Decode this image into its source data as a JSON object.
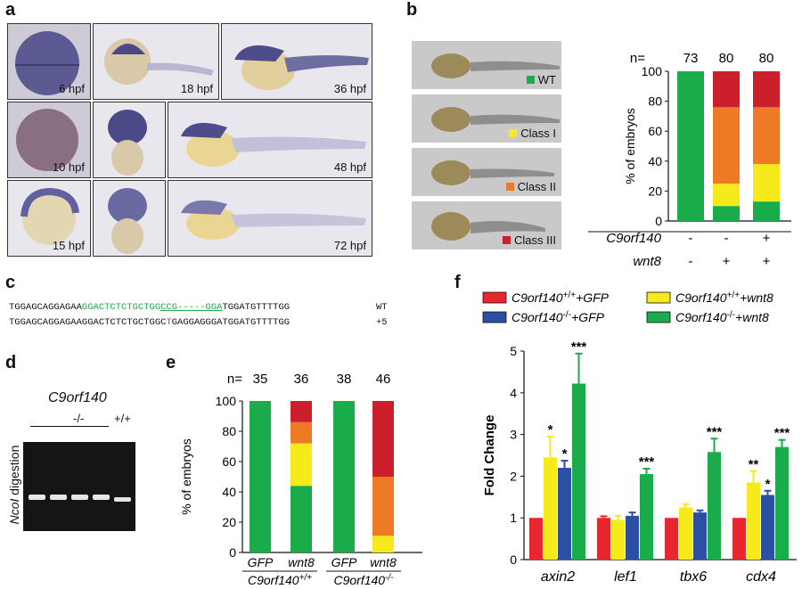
{
  "panels": {
    "a": "a",
    "b": "b",
    "c": "c",
    "d": "d",
    "e": "e",
    "f": "f"
  },
  "panel_a": {
    "stages": [
      "6 hpf",
      "18 hpf",
      "36 hpf",
      "10 hpf",
      "48 hpf",
      "15 hpf",
      "72 hpf"
    ]
  },
  "panel_b": {
    "class_labels": [
      "WT",
      "Class I",
      "Class II",
      "Class III"
    ],
    "class_colors": [
      "#1aab4b",
      "#f6ea1d",
      "#ee7a25",
      "#cc1f2c"
    ]
  },
  "panel_c": {
    "wt_seq_prefix": "TGGAGCAGGAGAA",
    "wt_seq_green1": "GGACTCTCTGCTGG",
    "wt_seq_green2": "CCG-----GGA",
    "wt_seq_suffix": "TGGATGTTTTGG",
    "wt_label": "WT",
    "mut_seq_prefix": "TGGAGCAGGAGAAGGACTCTCTGCTGGC",
    "mut_seq_red": "T",
    "mut_seq_suffix": "GAGGAGGGATGGATGTTTTGG",
    "mut_label": "+5"
  },
  "panel_d": {
    "gene": "C9orf140",
    "genotype_mut": "-/-",
    "genotype_wt": "+/+",
    "ylabel_italic": "NcoI",
    "ylabel_rest": " digestion"
  },
  "chart_data": [
    {
      "id": "b",
      "type": "bar",
      "stacked": true,
      "n_label": "n=",
      "n": [
        "73",
        "80",
        "80"
      ],
      "ylabel": "% of embryos",
      "ylim": [
        0,
        100
      ],
      "yticks": [
        "0",
        "20",
        "40",
        "60",
        "80",
        "100"
      ],
      "row_labels": [
        "C9orf140",
        "wnt8"
      ],
      "rows": [
        [
          "-",
          "-",
          "+"
        ],
        [
          "-",
          "+",
          "+"
        ]
      ],
      "series": [
        {
          "name": "WT",
          "values": [
            100,
            10,
            13
          ]
        },
        {
          "name": "Class I",
          "values": [
            0,
            15,
            25
          ]
        },
        {
          "name": "Class II",
          "values": [
            0,
            51,
            38
          ]
        },
        {
          "name": "Class III",
          "values": [
            0,
            24,
            24
          ]
        }
      ]
    },
    {
      "id": "e",
      "type": "bar",
      "stacked": true,
      "n_label": "n=",
      "n": [
        "35",
        "36",
        "38",
        "46"
      ],
      "ylabel": "% of embryos",
      "ylim": [
        0,
        100
      ],
      "yticks": [
        "0",
        "20",
        "40",
        "60",
        "80",
        "100"
      ],
      "categories": [
        "GFP",
        "wnt8",
        "GFP",
        "wnt8"
      ],
      "group_labels": [
        "C9orf140",
        "C9orf140"
      ],
      "group_sups": [
        "+/+",
        "-/-"
      ],
      "series": [
        {
          "name": "WT",
          "values": [
            100,
            44,
            100,
            0
          ]
        },
        {
          "name": "Class I",
          "values": [
            0,
            28,
            0,
            11
          ]
        },
        {
          "name": "Class II",
          "values": [
            0,
            14,
            0,
            39
          ]
        },
        {
          "name": "Class III",
          "values": [
            0,
            14,
            0,
            50
          ]
        }
      ]
    },
    {
      "id": "f",
      "type": "bar",
      "ylabel": "Fold Change",
      "ylim": [
        0,
        5
      ],
      "yticks": [
        "0",
        "1",
        "2",
        "3",
        "4",
        "5"
      ],
      "categories": [
        "axin2",
        "lef1",
        "tbx6",
        "cdx4"
      ],
      "legend": [
        {
          "gene": "C9orf140",
          "sup": "+/+",
          "rest": "+GFP",
          "color": "#e8262d"
        },
        {
          "gene": "C9orf140",
          "sup": "-/-",
          "rest": "+GFP",
          "color": "#2a4fa3"
        },
        {
          "gene": "C9orf140",
          "sup": "+/+",
          "rest": "+wnt8",
          "color": "#f6ea1d"
        },
        {
          "gene": "C9orf140",
          "sup": "-/-",
          "rest": "+wnt8",
          "color": "#1aab4b"
        }
      ],
      "series": [
        {
          "values": [
            1,
            1,
            1,
            1
          ],
          "errors": [
            0,
            0.04,
            0,
            0
          ],
          "stars": [
            "",
            "",
            "",
            ""
          ]
        },
        {
          "values": [
            2.45,
            0.95,
            1.25,
            1.85
          ],
          "errors": [
            0.5,
            0.1,
            0.08,
            0.27
          ],
          "stars": [
            "*",
            "",
            "",
            "**"
          ]
        },
        {
          "values": [
            2.2,
            1.05,
            1.13,
            1.55
          ],
          "errors": [
            0.17,
            0.08,
            0.05,
            0.1
          ],
          "stars": [
            "*",
            "",
            "",
            "*"
          ]
        },
        {
          "values": [
            4.22,
            2.05,
            2.58,
            2.7
          ],
          "errors": [
            0.72,
            0.13,
            0.32,
            0.17
          ],
          "stars": [
            "***",
            "***",
            "***",
            "***"
          ]
        }
      ]
    }
  ]
}
